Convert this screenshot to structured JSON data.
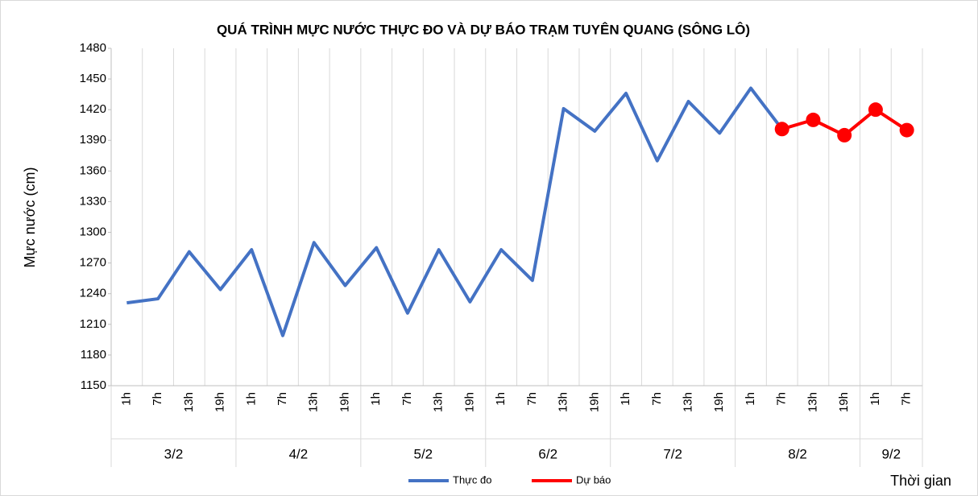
{
  "chart_data": {
    "type": "line",
    "title": "QUÁ TRÌNH MỰC NƯỚC THỰC ĐO VÀ DỰ BÁO TRẠM TUYÊN QUANG (SÔNG LÔ)",
    "y_label": "Mực nước (cm)",
    "x_label": "Thời gian",
    "category_groups": [
      {
        "name": "3/2",
        "categories": [
          "1h",
          "7h",
          "13h",
          "19h"
        ]
      },
      {
        "name": "4/2",
        "categories": [
          "1h",
          "7h",
          "13h",
          "19h"
        ]
      },
      {
        "name": "5/2",
        "categories": [
          "1h",
          "7h",
          "13h",
          "19h"
        ]
      },
      {
        "name": "6/2",
        "categories": [
          "1h",
          "7h",
          "13h",
          "19h"
        ]
      },
      {
        "name": "7/2",
        "categories": [
          "1h",
          "7h",
          "13h",
          "19h"
        ]
      },
      {
        "name": "8/2",
        "categories": [
          "1h",
          "7h",
          "13h",
          "19h"
        ]
      },
      {
        "name": "9/2",
        "categories": [
          "1h",
          "7h"
        ]
      }
    ],
    "series": [
      {
        "name": "Thực đo",
        "color": "#4472c4",
        "markers": false,
        "values": [
          1231,
          1235,
          1281,
          1244,
          1283,
          1199,
          1290,
          1248,
          1285,
          1221,
          1283,
          1232,
          1283,
          1253,
          1421,
          1399,
          1436,
          1370,
          1428,
          1397,
          1441,
          1401,
          null,
          null,
          null,
          null
        ]
      },
      {
        "name": "Dự báo",
        "color": "#ff0000",
        "markers": true,
        "values": [
          null,
          null,
          null,
          null,
          null,
          null,
          null,
          null,
          null,
          null,
          null,
          null,
          null,
          null,
          null,
          null,
          null,
          null,
          null,
          null,
          null,
          1401,
          1410,
          1395,
          1420,
          1400
        ]
      }
    ],
    "ylim": [
      1150,
      1480
    ],
    "yticks": [
      1150,
      1180,
      1210,
      1240,
      1270,
      1300,
      1330,
      1360,
      1390,
      1420,
      1450,
      1480
    ],
    "grid": "x",
    "legend": "bottom"
  }
}
